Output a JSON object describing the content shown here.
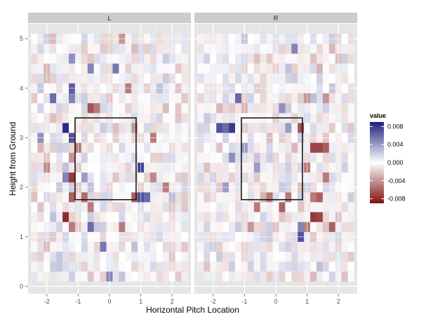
{
  "chart_data": {
    "type": "heatmap",
    "facets": [
      "L",
      "R"
    ],
    "xlabel": "Horizontal Pitch Location",
    "ylabel": "Height from Ground",
    "xlim": [
      -2.6,
      2.6
    ],
    "ylim": [
      -0.15,
      5.3
    ],
    "x_ticks": [
      -2,
      -1,
      0,
      1,
      2
    ],
    "y_ticks": [
      0,
      1,
      2,
      3,
      4,
      5
    ],
    "x_tick_labels": [
      "-2",
      "-1",
      "0",
      "1",
      "2"
    ],
    "y_tick_labels": [
      "0",
      "1",
      "2",
      "3",
      "4",
      "5"
    ],
    "cell_size": [
      0.2,
      0.2
    ],
    "x_range": [
      -2.5,
      2.5
    ],
    "y_range": [
      0.1,
      5.1
    ],
    "grid": true,
    "strike_zone": {
      "x": [
        -1.1,
        0.85
      ],
      "y": [
        1.75,
        3.4
      ]
    },
    "legend": {
      "title": "value",
      "position": "right",
      "limits": [
        -0.009,
        0.009
      ],
      "ticks": [
        0.008,
        0.004,
        0.0,
        -0.004,
        -0.008
      ],
      "tick_labels": [
        "0.008",
        "0.004",
        "0.000",
        "-0.004",
        "-0.008"
      ],
      "low_color": "#7f1111",
      "mid_color": "#ffffff",
      "high_color": "#1f1f7f"
    },
    "highlights": {
      "L": [
        {
          "x": -1.4,
          "y": 3.1,
          "v": 0.0085
        },
        {
          "x": -1.2,
          "y": 3.0,
          "v": 0.007
        },
        {
          "x": -1.2,
          "y": 4.1,
          "v": 0.0065
        },
        {
          "x": -1.2,
          "y": 3.8,
          "v": 0.005
        },
        {
          "x": -1.8,
          "y": 3.7,
          "v": 0.006
        },
        {
          "x": -2.2,
          "y": 3.0,
          "v": 0.0045
        },
        {
          "x": -1.4,
          "y": 2.1,
          "v": 0.005
        },
        {
          "x": -1.2,
          "y": 2.3,
          "v": -0.0075
        },
        {
          "x": -1.2,
          "y": 1.9,
          "v": -0.006
        },
        {
          "x": -1.0,
          "y": 2.8,
          "v": -0.005
        },
        {
          "x": -1.4,
          "y": 1.4,
          "v": -0.008
        },
        {
          "x": -1.2,
          "y": 1.3,
          "v": -0.005
        },
        {
          "x": -0.6,
          "y": 3.6,
          "v": -0.0065
        },
        {
          "x": -0.4,
          "y": 3.5,
          "v": -0.005
        },
        {
          "x": -0.8,
          "y": 1.8,
          "v": -0.0055
        },
        {
          "x": -0.6,
          "y": 1.7,
          "v": -0.005
        },
        {
          "x": -0.6,
          "y": 1.2,
          "v": 0.006
        },
        {
          "x": -0.8,
          "y": 2.2,
          "v": 0.004
        },
        {
          "x": 0.2,
          "y": 4.3,
          "v": 0.0055
        },
        {
          "x": -0.6,
          "y": 4.4,
          "v": 0.005
        },
        {
          "x": -1.2,
          "y": 2.6,
          "v": -0.004
        },
        {
          "x": 1.0,
          "y": 2.5,
          "v": 0.0075
        },
        {
          "x": 1.0,
          "y": 1.9,
          "v": 0.007
        },
        {
          "x": 1.2,
          "y": 1.8,
          "v": 0.006
        },
        {
          "x": 0.8,
          "y": 1.8,
          "v": -0.006
        },
        {
          "x": 0.6,
          "y": 4.1,
          "v": -0.005
        },
        {
          "x": 0.8,
          "y": 3.2,
          "v": -0.004
        },
        {
          "x": 1.4,
          "y": 3.0,
          "v": -0.005
        },
        {
          "x": 0.4,
          "y": 1.2,
          "v": -0.005
        },
        {
          "x": -0.2,
          "y": 0.8,
          "v": 0.0055
        },
        {
          "x": 0.0,
          "y": 0.3,
          "v": 0.005
        },
        {
          "x": -1.2,
          "y": 4.6,
          "v": 0.0045
        },
        {
          "x": 0.4,
          "y": 4.9,
          "v": -0.004
        },
        {
          "x": 1.4,
          "y": 2.1,
          "v": -0.0045
        },
        {
          "x": 1.8,
          "y": 2.0,
          "v": -0.005
        },
        {
          "x": -2.0,
          "y": 2.4,
          "v": -0.0045
        }
      ],
      "R": [
        {
          "x": -1.4,
          "y": 3.2,
          "v": 0.008
        },
        {
          "x": -1.8,
          "y": 3.2,
          "v": 0.007
        },
        {
          "x": -1.6,
          "y": 3.1,
          "v": 0.006
        },
        {
          "x": -1.2,
          "y": 3.7,
          "v": 0.006
        },
        {
          "x": -1.0,
          "y": 2.8,
          "v": 0.004
        },
        {
          "x": -1.4,
          "y": 2.6,
          "v": 0.0045
        },
        {
          "x": 0.8,
          "y": 3.1,
          "v": -0.0065
        },
        {
          "x": 1.0,
          "y": 2.4,
          "v": -0.005
        },
        {
          "x": 1.2,
          "y": 2.8,
          "v": -0.007
        },
        {
          "x": 1.6,
          "y": 2.9,
          "v": -0.006
        },
        {
          "x": 1.4,
          "y": 2.7,
          "v": -0.007
        },
        {
          "x": 1.2,
          "y": 1.9,
          "v": -0.005
        },
        {
          "x": 1.4,
          "y": 1.8,
          "v": -0.006
        },
        {
          "x": 1.6,
          "y": 2.2,
          "v": -0.005
        },
        {
          "x": 1.2,
          "y": 1.4,
          "v": -0.0075
        },
        {
          "x": 1.4,
          "y": 1.4,
          "v": -0.007
        },
        {
          "x": 1.8,
          "y": 1.3,
          "v": -0.006
        },
        {
          "x": 1.0,
          "y": 1.2,
          "v": -0.005
        },
        {
          "x": 0.8,
          "y": 1.0,
          "v": 0.007
        },
        {
          "x": 0.8,
          "y": 1.2,
          "v": 0.005
        },
        {
          "x": -0.6,
          "y": 1.7,
          "v": -0.005
        },
        {
          "x": -0.2,
          "y": 1.8,
          "v": -0.005
        },
        {
          "x": 0.2,
          "y": 1.7,
          "v": -0.006
        },
        {
          "x": 0.4,
          "y": 1.8,
          "v": -0.005
        },
        {
          "x": -0.8,
          "y": 1.3,
          "v": -0.004
        },
        {
          "x": 0.6,
          "y": 4.7,
          "v": 0.005
        },
        {
          "x": 0.4,
          "y": 3.3,
          "v": 0.004
        },
        {
          "x": -1.6,
          "y": 2.0,
          "v": 0.004
        },
        {
          "x": 1.6,
          "y": 3.8,
          "v": -0.004
        },
        {
          "x": 1.0,
          "y": 3.7,
          "v": -0.004
        },
        {
          "x": 0.2,
          "y": 3.6,
          "v": 0.0045
        },
        {
          "x": -0.6,
          "y": 2.5,
          "v": 0.004
        }
      ]
    }
  }
}
